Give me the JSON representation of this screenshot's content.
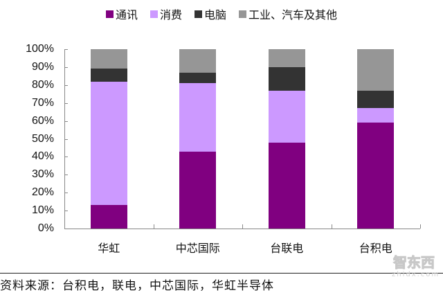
{
  "chart_data": {
    "type": "bar",
    "stacked": true,
    "percent": true,
    "title": "",
    "xlabel": "",
    "ylabel": "",
    "ylim": [
      0,
      100
    ],
    "yticks": [
      "0%",
      "10%",
      "20%",
      "30%",
      "40%",
      "50%",
      "60%",
      "70%",
      "80%",
      "90%",
      "100%"
    ],
    "categories": [
      "华虹",
      "中芯国际",
      "台联电",
      "台积电"
    ],
    "series": [
      {
        "name": "通讯",
        "color": "#800080",
        "values": [
          13,
          43,
          48,
          59
        ]
      },
      {
        "name": "消费",
        "color": "#cc99ff",
        "values": [
          69,
          38,
          29,
          8
        ]
      },
      {
        "name": "电脑",
        "color": "#333333",
        "values": [
          7,
          6,
          13,
          10
        ]
      },
      {
        "name": "工业、汽车及其他",
        "color": "#969696",
        "values": [
          11,
          13,
          10,
          23
        ]
      }
    ],
    "legend_position": "top",
    "grid": false
  },
  "legend": [
    {
      "label": "通讯",
      "color": "#800080"
    },
    {
      "label": "消费",
      "color": "#cc99ff"
    },
    {
      "label": "电脑",
      "color": "#333333"
    },
    {
      "label": "工业、汽车及其他",
      "color": "#969696"
    }
  ],
  "source": "资料来源：台积电，联电，中芯国际，华虹半导体",
  "watermark": {
    "cn": "智东西",
    "en": "zhidx.com"
  }
}
